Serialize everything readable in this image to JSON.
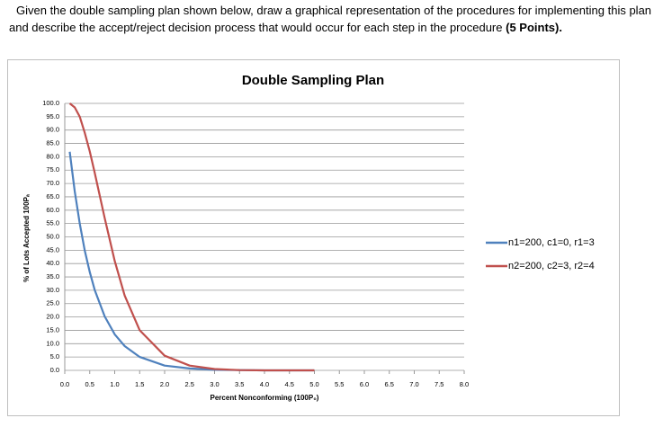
{
  "question": {
    "text": "Given the double sampling plan shown below, draw a graphical representation of the procedures for implementing this plan and describe the accept/reject decision process that would occur for each step in the procedure",
    "bold": "(5 Points)."
  },
  "chart_data": {
    "type": "line",
    "title": "Double Sampling Plan",
    "x_label": "Percent Nonconforming (100P₀)",
    "y_label": "% of Lots Accepted 100Pₐ",
    "x": [
      0.1,
      0.2,
      0.3,
      0.4,
      0.5,
      0.6,
      0.8,
      1.0,
      1.2,
      1.5,
      2.0,
      2.5,
      3.0,
      3.5,
      4.0,
      5.0
    ],
    "series": [
      {
        "name": "n1=200, c1=0, r1=3",
        "color": "#4f81bd",
        "values": [
          81.9,
          67.0,
          54.9,
          44.9,
          36.8,
          30.1,
          20.2,
          13.5,
          9.1,
          5.0,
          1.8,
          0.7,
          0.2,
          0.1,
          0.0,
          0.0
        ]
      },
      {
        "name": "n2=200, c2=3, r2=4",
        "color": "#c0504d",
        "values": [
          100.0,
          98.5,
          95.0,
          89.0,
          82.0,
          74.0,
          57.0,
          41.0,
          28.0,
          15.0,
          5.5,
          1.8,
          0.5,
          0.1,
          0.0,
          0.0
        ]
      }
    ],
    "xlim": [
      0,
      8
    ],
    "ylim": [
      0,
      100
    ],
    "xticks": [
      {
        "value": 0,
        "label": "0.0"
      },
      {
        "value": 0.5,
        "label": "0.5"
      },
      {
        "value": 1,
        "label": "1.0"
      },
      {
        "value": 1.5,
        "label": "1.5"
      },
      {
        "value": 2,
        "label": "2.0"
      },
      {
        "value": 2.5,
        "label": "2.5"
      },
      {
        "value": 3,
        "label": "3.0"
      },
      {
        "value": 3.5,
        "label": "3.5"
      },
      {
        "value": 4,
        "label": "4.0"
      },
      {
        "value": 4.5,
        "label": "4.5"
      },
      {
        "value": 5,
        "label": "5.0"
      },
      {
        "value": 5.5,
        "label": "5.5"
      },
      {
        "value": 6,
        "label": "6.0"
      },
      {
        "value": 6.5,
        "label": "6.5"
      },
      {
        "value": 7,
        "label": "7.0"
      },
      {
        "value": 7.5,
        "label": "7.5"
      },
      {
        "value": 8,
        "label": "8.0"
      }
    ],
    "yticks": [
      {
        "value": 0,
        "label": "0.0"
      },
      {
        "value": 5,
        "label": "5.0"
      },
      {
        "value": 10,
        "label": "10.0"
      },
      {
        "value": 15,
        "label": "15.0"
      },
      {
        "value": 20,
        "label": "20.0"
      },
      {
        "value": 25,
        "label": "25.0"
      },
      {
        "value": 30,
        "label": "30.0"
      },
      {
        "value": 35,
        "label": "35.0"
      },
      {
        "value": 40,
        "label": "40.0"
      },
      {
        "value": 45,
        "label": "45.0"
      },
      {
        "value": 50,
        "label": "50.0"
      },
      {
        "value": 55,
        "label": "55.0"
      },
      {
        "value": 60,
        "label": "60.0"
      },
      {
        "value": 65,
        "label": "65.0"
      },
      {
        "value": 70,
        "label": "70.0"
      },
      {
        "value": 75,
        "label": "75.0"
      },
      {
        "value": 80,
        "label": "80.0"
      },
      {
        "value": 85,
        "label": "85.0"
      },
      {
        "value": 90,
        "label": "90.0"
      },
      {
        "value": 95,
        "label": "95.0"
      },
      {
        "value": 100,
        "label": "100.0"
      }
    ],
    "grid": true,
    "legend": "right"
  }
}
